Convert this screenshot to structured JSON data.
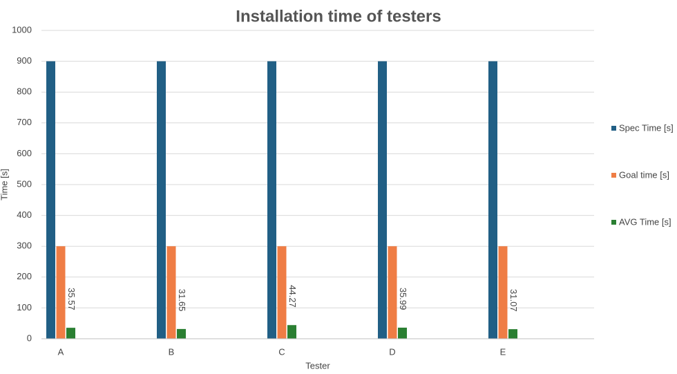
{
  "chart_data": {
    "type": "bar",
    "title": "Installation time of testers",
    "x_label": "Tester",
    "y_label": "Time [s]",
    "categories": [
      "A",
      "B",
      "C",
      "D",
      "E"
    ],
    "series": [
      {
        "name": "Spec Time [s]",
        "color": "#215f85",
        "values": [
          900,
          900,
          900,
          900,
          900
        ]
      },
      {
        "name": "Goal time [s]",
        "color": "#ef7d45",
        "values": [
          300,
          300,
          300,
          300,
          300
        ]
      },
      {
        "name": "AVG Time [s]",
        "color": "#2a7f32",
        "values": [
          35.57,
          31.65,
          44.27,
          35.99,
          31.07
        ],
        "data_labels": true
      }
    ],
    "ylim": [
      0,
      1000
    ],
    "yticks": [
      0,
      100,
      200,
      300,
      400,
      500,
      600,
      700,
      800,
      900,
      1000
    ],
    "grid": true,
    "legend": "right"
  }
}
